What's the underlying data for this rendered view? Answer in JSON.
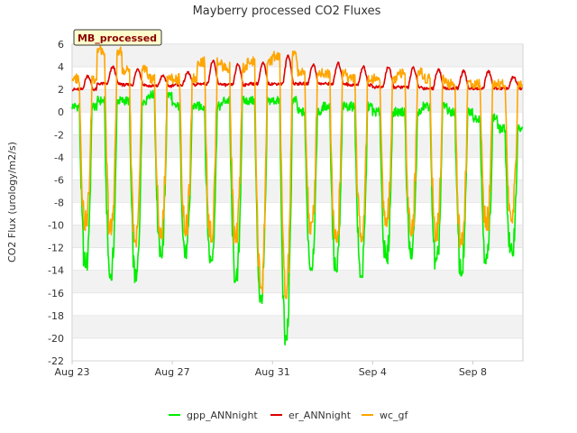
{
  "chart_data": {
    "type": "line",
    "title": "Mayberry processed CO2 Fluxes",
    "ylabel": "CO2 Flux (urology/m2/s)",
    "xlabel": "",
    "badge": "MB_processed",
    "ylim": [
      -22,
      6
    ],
    "yticks": [
      6,
      4,
      2,
      0,
      -2,
      -4,
      -6,
      -8,
      -10,
      -12,
      -14,
      -16,
      -18,
      -20,
      -22
    ],
    "xlim": [
      "2023-08-23",
      "2023-09-10"
    ],
    "xticks": [
      {
        "label": "Aug 23",
        "date": "2023-08-23"
      },
      {
        "label": "Aug 27",
        "date": "2023-08-27"
      },
      {
        "label": "Aug 31",
        "date": "2023-08-31"
      },
      {
        "label": "Sep 4",
        "date": "2023-09-04"
      },
      {
        "label": "Sep 8",
        "date": "2023-09-08"
      }
    ],
    "grid": "alternating horizontal bands",
    "legend_position": "bottom",
    "daily_extremes": [
      {
        "date": "2023-08-23",
        "gpp_min": -14.0,
        "gpp_max": 0.5,
        "er_min": 2.0,
        "er_max": 3.2,
        "wc_min": -10.5,
        "wc_max": 3.0
      },
      {
        "date": "2023-08-24",
        "gpp_min": -15.0,
        "gpp_max": 1.0,
        "er_min": 2.5,
        "er_max": 4.0,
        "wc_min": -11.0,
        "wc_max": 5.5
      },
      {
        "date": "2023-08-25",
        "gpp_min": -15.3,
        "gpp_max": 1.0,
        "er_min": 2.4,
        "er_max": 3.8,
        "wc_min": -12.0,
        "wc_max": 3.8
      },
      {
        "date": "2023-08-26",
        "gpp_min": -13.3,
        "gpp_max": 1.5,
        "er_min": 2.3,
        "er_max": 3.2,
        "wc_min": -11.5,
        "wc_max": 3.0
      },
      {
        "date": "2023-08-27",
        "gpp_min": -13.0,
        "gpp_max": 0.5,
        "er_min": 2.4,
        "er_max": 3.5,
        "wc_min": -11.0,
        "wc_max": 3.0
      },
      {
        "date": "2023-08-28",
        "gpp_min": -13.5,
        "gpp_max": 0.5,
        "er_min": 2.5,
        "er_max": 4.5,
        "wc_min": -11.5,
        "wc_max": 4.5
      },
      {
        "date": "2023-08-29",
        "gpp_min": -15.5,
        "gpp_max": 1.0,
        "er_min": 2.4,
        "er_max": 4.2,
        "wc_min": -12.0,
        "wc_max": 4.0
      },
      {
        "date": "2023-08-30",
        "gpp_min": -17.0,
        "gpp_max": 1.0,
        "er_min": 2.5,
        "er_max": 4.3,
        "wc_min": -16.0,
        "wc_max": 4.5
      },
      {
        "date": "2023-08-31",
        "gpp_min": -20.7,
        "gpp_max": 1.0,
        "er_min": 2.5,
        "er_max": 5.0,
        "wc_min": -16.5,
        "wc_max": 5.0
      },
      {
        "date": "2023-09-01",
        "gpp_min": -14.0,
        "gpp_max": 0.0,
        "er_min": 2.5,
        "er_max": 4.2,
        "wc_min": -11.0,
        "wc_max": 3.5
      },
      {
        "date": "2023-09-02",
        "gpp_min": -14.5,
        "gpp_max": 0.5,
        "er_min": 2.5,
        "er_max": 4.3,
        "wc_min": -12.0,
        "wc_max": 3.5
      },
      {
        "date": "2023-09-03",
        "gpp_min": -15.0,
        "gpp_max": 0.5,
        "er_min": 2.4,
        "er_max": 4.0,
        "wc_min": -11.5,
        "wc_max": 3.0
      },
      {
        "date": "2023-09-04",
        "gpp_min": -13.5,
        "gpp_max": 0.0,
        "er_min": 2.2,
        "er_max": 4.0,
        "wc_min": -10.5,
        "wc_max": 3.0
      },
      {
        "date": "2023-09-05",
        "gpp_min": -13.0,
        "gpp_max": 0.0,
        "er_min": 2.2,
        "er_max": 3.9,
        "wc_min": -11.0,
        "wc_max": 3.5
      },
      {
        "date": "2023-09-06",
        "gpp_min": -14.0,
        "gpp_max": 0.5,
        "er_min": 2.1,
        "er_max": 3.8,
        "wc_min": -11.5,
        "wc_max": 3.0
      },
      {
        "date": "2023-09-07",
        "gpp_min": -14.5,
        "gpp_max": 0.0,
        "er_min": 2.1,
        "er_max": 3.6,
        "wc_min": -12.0,
        "wc_max": 2.5
      },
      {
        "date": "2023-09-08",
        "gpp_min": -13.5,
        "gpp_max": -0.5,
        "er_min": 2.1,
        "er_max": 3.6,
        "wc_min": -10.5,
        "wc_max": 2.5
      },
      {
        "date": "2023-09-09",
        "gpp_min": -13.0,
        "gpp_max": -1.5,
        "er_min": 2.1,
        "er_max": 3.1,
        "wc_min": -10.0,
        "wc_max": 2.5
      }
    ],
    "series": [
      {
        "name": "gpp_ANNnight",
        "color": "#00ee00",
        "key": "gpp"
      },
      {
        "name": "er_ANNnight",
        "color": "#dd0000",
        "key": "er"
      },
      {
        "name": "wc_gf",
        "color": "#ffa500",
        "key": "wc"
      }
    ],
    "colors": {
      "band": "#f2f2f2",
      "grid": "#dddddd",
      "axis": "#cccccc",
      "badge_bg": "#ffffcc",
      "badge_border": "#333333"
    }
  }
}
